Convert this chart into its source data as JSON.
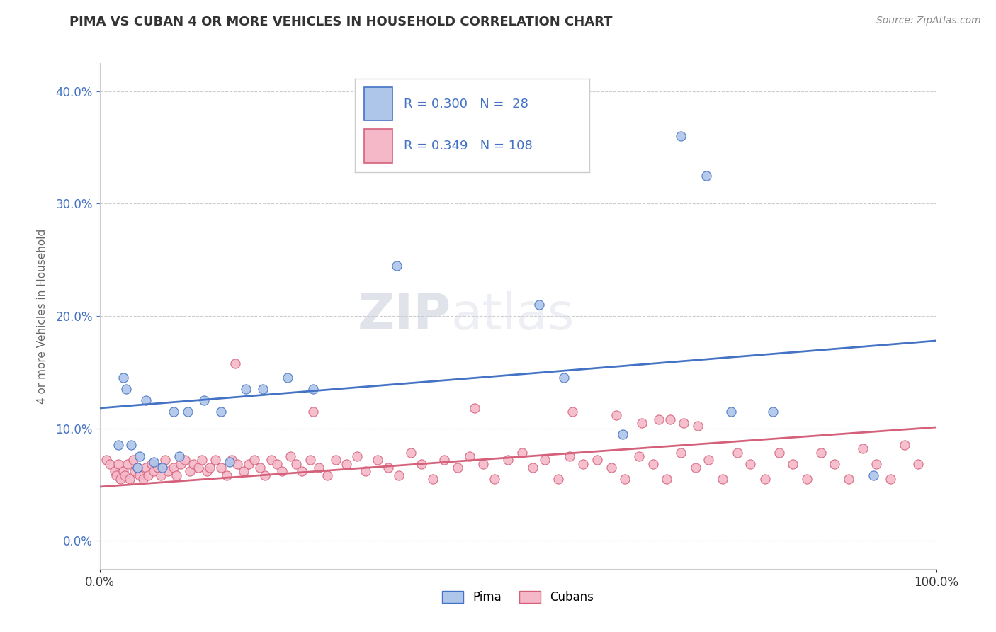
{
  "title": "PIMA VS CUBAN 4 OR MORE VEHICLES IN HOUSEHOLD CORRELATION CHART",
  "source_text": "Source: ZipAtlas.com",
  "ylabel": "4 or more Vehicles in Household",
  "xlim": [
    0.0,
    1.0
  ],
  "ylim": [
    -0.025,
    0.425
  ],
  "xtick_positions": [
    0.0,
    1.0
  ],
  "xtick_labels": [
    "0.0%",
    "100.0%"
  ],
  "ytick_values": [
    0.0,
    0.1,
    0.2,
    0.3,
    0.4
  ],
  "ytick_labels": [
    "0.0%",
    "10.0%",
    "20.0%",
    "30.0%",
    "40.0%"
  ],
  "pima_fill_color": "#aec6ea",
  "pima_edge_color": "#4472c4",
  "cubans_fill_color": "#f4b8c8",
  "cubans_edge_color": "#d4607a",
  "pima_line_color": "#4472c4",
  "cubans_line_color": "#d4607a",
  "R_pima": 0.3,
  "N_pima": 28,
  "R_cubans": 0.349,
  "N_cubans": 108,
  "pima_line_y0": 0.118,
  "pima_line_y1": 0.178,
  "cubans_line_y0": 0.048,
  "cubans_line_y1": 0.101,
  "watermark_text": "ZIPatlas",
  "watermark_color": "#d8dde8",
  "legend_text_color": "#4472c4",
  "background_color": "#ffffff",
  "grid_color": "#cccccc",
  "title_color": "#333333",
  "source_color": "#888888",
  "ylabel_color": "#666666",
  "tick_color": "#4472c4",
  "pima_x": [
    0.022,
    0.028,
    0.032,
    0.038,
    0.045,
    0.048,
    0.055,
    0.065,
    0.075,
    0.088,
    0.095,
    0.105,
    0.125,
    0.145,
    0.155,
    0.175,
    0.195,
    0.225,
    0.255,
    0.355,
    0.525,
    0.555,
    0.625,
    0.695,
    0.725,
    0.755,
    0.805,
    0.925
  ],
  "pima_y": [
    0.085,
    0.145,
    0.135,
    0.085,
    0.065,
    0.075,
    0.125,
    0.07,
    0.065,
    0.115,
    0.075,
    0.115,
    0.125,
    0.115,
    0.07,
    0.135,
    0.135,
    0.145,
    0.135,
    0.245,
    0.21,
    0.145,
    0.095,
    0.36,
    0.325,
    0.115,
    0.115,
    0.058
  ],
  "cubans_x": [
    0.008,
    0.012,
    0.018,
    0.02,
    0.022,
    0.025,
    0.028,
    0.03,
    0.033,
    0.036,
    0.04,
    0.042,
    0.045,
    0.048,
    0.052,
    0.055,
    0.058,
    0.062,
    0.065,
    0.07,
    0.073,
    0.078,
    0.082,
    0.088,
    0.092,
    0.097,
    0.102,
    0.108,
    0.112,
    0.118,
    0.122,
    0.128,
    0.132,
    0.138,
    0.145,
    0.152,
    0.158,
    0.165,
    0.172,
    0.178,
    0.185,
    0.192,
    0.198,
    0.205,
    0.212,
    0.218,
    0.228,
    0.235,
    0.242,
    0.252,
    0.262,
    0.272,
    0.282,
    0.295,
    0.308,
    0.318,
    0.332,
    0.345,
    0.358,
    0.372,
    0.385,
    0.398,
    0.412,
    0.428,
    0.442,
    0.458,
    0.472,
    0.488,
    0.505,
    0.518,
    0.532,
    0.548,
    0.562,
    0.578,
    0.595,
    0.612,
    0.628,
    0.645,
    0.662,
    0.678,
    0.695,
    0.712,
    0.728,
    0.745,
    0.762,
    0.778,
    0.795,
    0.812,
    0.828,
    0.845,
    0.862,
    0.878,
    0.895,
    0.912,
    0.928,
    0.945,
    0.962,
    0.978,
    0.162,
    0.255,
    0.448,
    0.565,
    0.618,
    0.648,
    0.668,
    0.682,
    0.698,
    0.715
  ],
  "cubans_y": [
    0.072,
    0.068,
    0.062,
    0.058,
    0.068,
    0.055,
    0.062,
    0.058,
    0.068,
    0.055,
    0.072,
    0.062,
    0.065,
    0.058,
    0.055,
    0.065,
    0.058,
    0.068,
    0.062,
    0.065,
    0.058,
    0.072,
    0.062,
    0.065,
    0.058,
    0.068,
    0.072,
    0.062,
    0.068,
    0.065,
    0.072,
    0.062,
    0.065,
    0.072,
    0.065,
    0.058,
    0.072,
    0.068,
    0.062,
    0.068,
    0.072,
    0.065,
    0.058,
    0.072,
    0.068,
    0.062,
    0.075,
    0.068,
    0.062,
    0.072,
    0.065,
    0.058,
    0.072,
    0.068,
    0.075,
    0.062,
    0.072,
    0.065,
    0.058,
    0.078,
    0.068,
    0.055,
    0.072,
    0.065,
    0.075,
    0.068,
    0.055,
    0.072,
    0.078,
    0.065,
    0.072,
    0.055,
    0.075,
    0.068,
    0.072,
    0.065,
    0.055,
    0.075,
    0.068,
    0.055,
    0.078,
    0.065,
    0.072,
    0.055,
    0.078,
    0.068,
    0.055,
    0.078,
    0.068,
    0.055,
    0.078,
    0.068,
    0.055,
    0.082,
    0.068,
    0.055,
    0.085,
    0.068,
    0.158,
    0.115,
    0.118,
    0.115,
    0.112,
    0.105,
    0.108,
    0.108,
    0.105,
    0.102
  ]
}
